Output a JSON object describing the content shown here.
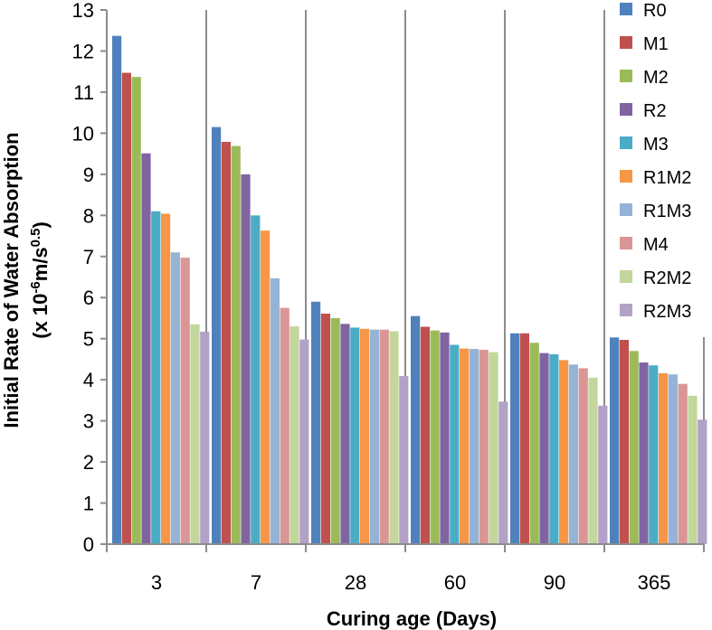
{
  "chart_data": {
    "type": "bar",
    "title": "",
    "xlabel": "Curing age (Days)",
    "ylabel_main": "Initial Rate of Water Absorption",
    "ylabel_unit": {
      "prefix": "(x 10",
      "exp1": "-6",
      "mid": "m/s",
      "exp2": "0.5",
      "suffix": ")"
    },
    "ylim": [
      0,
      13
    ],
    "yticks": [
      0,
      1,
      2,
      3,
      4,
      5,
      6,
      7,
      8,
      9,
      10,
      11,
      12,
      13
    ],
    "categories": [
      "3",
      "7",
      "28",
      "60",
      "90",
      "365"
    ],
    "legend_position": "right",
    "series": [
      {
        "name": "R0",
        "color": "#4F81BD",
        "values": [
          12.37,
          10.15,
          5.9,
          5.55,
          5.13,
          5.03
        ]
      },
      {
        "name": "M1",
        "color": "#C0504D",
        "values": [
          11.47,
          9.79,
          5.61,
          5.29,
          5.13,
          4.97
        ]
      },
      {
        "name": "M2",
        "color": "#9BBB59",
        "values": [
          11.37,
          9.69,
          5.5,
          5.2,
          4.9,
          4.7
        ]
      },
      {
        "name": "R2",
        "color": "#8064A2",
        "values": [
          9.51,
          9.0,
          5.36,
          5.15,
          4.65,
          4.42
        ]
      },
      {
        "name": "M3",
        "color": "#4BACC6",
        "values": [
          8.1,
          8.0,
          5.27,
          4.85,
          4.62,
          4.35
        ]
      },
      {
        "name": "R1M2",
        "color": "#F79646",
        "values": [
          8.04,
          7.63,
          5.24,
          4.76,
          4.48,
          4.16
        ]
      },
      {
        "name": "R1M3",
        "color": "#95B3D7",
        "values": [
          7.1,
          6.47,
          5.22,
          4.75,
          4.37,
          4.13
        ]
      },
      {
        "name": "M4",
        "color": "#D99694",
        "values": [
          6.97,
          5.75,
          5.22,
          4.73,
          4.28,
          3.9
        ]
      },
      {
        "name": "R2M2",
        "color": "#C3D69B",
        "values": [
          5.35,
          5.3,
          5.18,
          4.67,
          4.05,
          3.61
        ]
      },
      {
        "name": "R2M3",
        "color": "#B3A2C7",
        "values": [
          5.17,
          4.98,
          4.09,
          3.47,
          3.37,
          3.03
        ]
      }
    ]
  }
}
